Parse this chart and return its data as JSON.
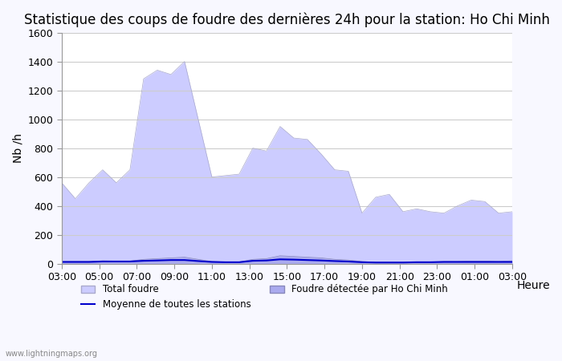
{
  "title": "Statistique des coups de foudre des dernières 24h pour la station: Ho Chi Minh",
  "xlabel": "Heure",
  "ylabel": "Nb /h",
  "ylim": [
    0,
    1600
  ],
  "yticks": [
    0,
    200,
    400,
    600,
    800,
    1000,
    1200,
    1400,
    1600
  ],
  "xtick_labels": [
    "03:00",
    "05:00",
    "07:00",
    "09:00",
    "11:00",
    "13:00",
    "15:00",
    "17:00",
    "19:00",
    "21:00",
    "23:00",
    "01:00",
    "03:00"
  ],
  "watermark": "www.lightningmaps.org",
  "legend": [
    {
      "label": "Total foudre",
      "color": "#ccccff",
      "type": "patch"
    },
    {
      "label": "Moyenne de toutes les stations",
      "color": "#0000cc",
      "type": "line"
    },
    {
      "label": "Foudre détectée par Ho Chi Minh",
      "color": "#aaaaee",
      "type": "patch"
    }
  ],
  "total_foudre": [
    560,
    450,
    560,
    650,
    560,
    650,
    1280,
    1340,
    1310,
    1400,
    1000,
    600,
    610,
    620,
    800,
    780,
    950,
    870,
    860,
    760,
    650,
    640,
    350,
    460,
    480,
    360,
    380,
    360,
    350,
    400,
    440,
    430,
    350,
    360
  ],
  "ho_chi_minh": [
    15,
    15,
    15,
    20,
    18,
    18,
    30,
    35,
    40,
    45,
    30,
    15,
    12,
    12,
    30,
    35,
    55,
    50,
    45,
    40,
    30,
    25,
    15,
    10,
    10,
    10,
    10,
    12,
    15,
    15,
    18,
    18,
    15,
    20
  ],
  "moyenne": [
    12,
    12,
    12,
    15,
    15,
    15,
    20,
    22,
    25,
    25,
    18,
    12,
    10,
    10,
    20,
    22,
    30,
    28,
    25,
    22,
    18,
    15,
    10,
    8,
    8,
    8,
    10,
    10,
    12,
    12,
    12,
    12,
    12,
    12
  ],
  "n_points": 34,
  "background_color": "#f8f8ff",
  "plot_bg_color": "#ffffff",
  "grid_color": "#cccccc",
  "title_fontsize": 12,
  "axis_fontsize": 10,
  "tick_fontsize": 9
}
